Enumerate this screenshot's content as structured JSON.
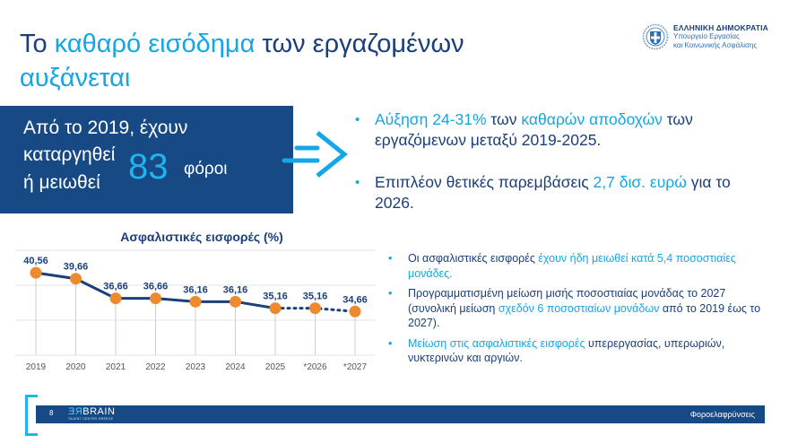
{
  "header": {
    "title_parts": [
      {
        "text": "Το ",
        "highlight": false
      },
      {
        "text": "καθαρό εισόδημα",
        "highlight": true
      },
      {
        "text": " των εργαζομένων",
        "highlight": false
      }
    ],
    "title_line2": "αυξάνεται",
    "logo": {
      "line1": "ΕΛΛΗΝΙΚΗ ΔΗΜΟΚΡΑΤΙΑ",
      "line2": "Υπουργείο Εργασίας",
      "line3": "και Κοινωνικής Ασφάλισης",
      "icon": "greek-coat-of-arms-icon"
    }
  },
  "highlight_box": {
    "line1": "Από το 2019, έχουν",
    "line2": "καταργηθεί",
    "line3": "ή μειωθεί",
    "number": "83",
    "unit": "φόροι"
  },
  "top_bullets": [
    {
      "parts": [
        {
          "t": "Αύξηση 24-31%",
          "h": true
        },
        {
          "t": " των ",
          "h": false
        },
        {
          "t": "καθαρών αποδοχών",
          "h": true
        },
        {
          "t": " των εργαζόμενων μεταξύ 2019-2025.",
          "h": false
        }
      ]
    },
    {
      "parts": [
        {
          "t": "Επιπλέον θετικές παρεμβάσεις ",
          "h": false
        },
        {
          "t": "2,7 δισ. ευρώ",
          "h": true
        },
        {
          "t": " για το 2026.",
          "h": false
        }
      ]
    }
  ],
  "bottom_bullets": [
    {
      "parts": [
        {
          "t": "Οι ασφαλιστικές εισφορές ",
          "h": false
        },
        {
          "t": "έχουν ήδη μειωθεί κατά 5,4 ποσοστιαίες μονάδες.",
          "h": true
        }
      ]
    },
    {
      "parts": [
        {
          "t": "Προγραμματισμένη μείωση μισής ποσοστιαίας μονάδας το 2027 (συνολική μείωση ",
          "h": false
        },
        {
          "t": "σχεδόν 6 ποσοστιαίων μονάδων",
          "h": true
        },
        {
          "t": " από το 2019 έως το 2027).",
          "h": false
        }
      ]
    },
    {
      "parts": [
        {
          "t": "Μείωση στις ασφαλιστικές εισφορές",
          "h": true
        },
        {
          "t": " υπερεργασίας, υπερωριών, νυκτερινών και αργιών.",
          "h": false
        }
      ]
    }
  ],
  "footer": {
    "page": "8",
    "brand_re": "ƎЯ",
    "brand": "BRAIN",
    "brand_sub": "TALENT CENTER GREECE",
    "section": "Φοροελαφρύνσεις"
  },
  "colors": {
    "navy": "#174a85",
    "accent": "#14a6e6",
    "marker": "#ee8a2e",
    "line": "#1a3f7a"
  },
  "chart_data": {
    "type": "line",
    "title": "Ασφαλιστικές εισφορές (%)",
    "categories": [
      "2019",
      "2020",
      "2021",
      "2022",
      "2023",
      "2024",
      "2025",
      "*2026",
      "*2027"
    ],
    "series": [
      {
        "name": "Ασφαλιστικές εισφορές (%)",
        "values": [
          40.56,
          39.66,
          36.66,
          36.66,
          36.16,
          36.16,
          35.16,
          35.16,
          34.66
        ]
      }
    ],
    "data_labels": [
      "40,56",
      "39,66",
      "36,66",
      "36,66",
      "36,16",
      "36,16",
      "35,16",
      "35,16",
      "34,66"
    ],
    "projected_from_index": 6,
    "xlabel": "",
    "ylabel": "",
    "ylim": [
      28,
      44
    ],
    "grid": true,
    "legend": "none"
  }
}
